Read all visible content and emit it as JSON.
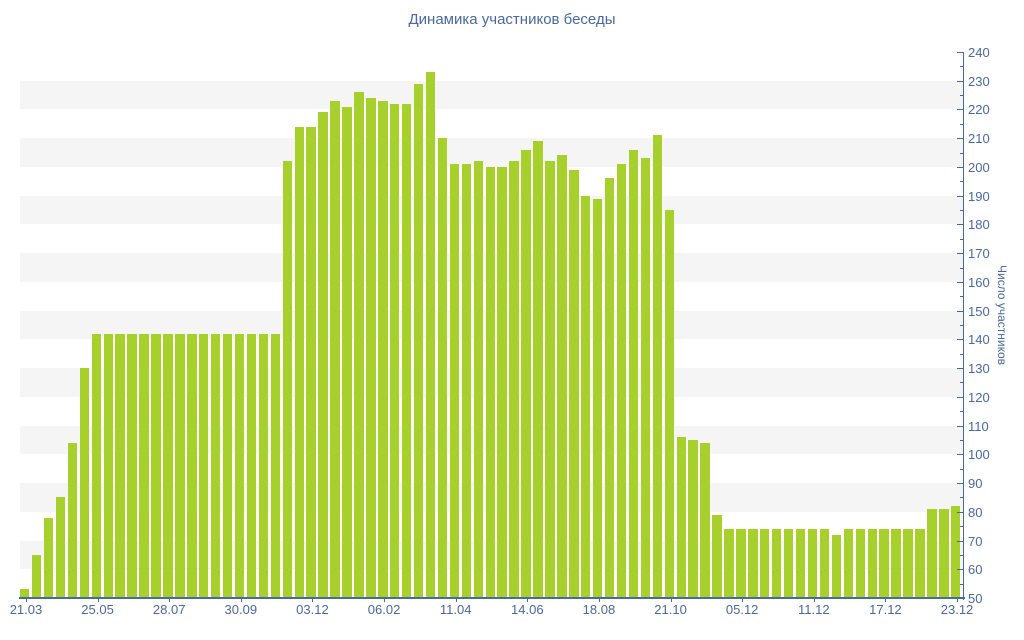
{
  "chart_data": {
    "type": "bar",
    "title": "Динамика участников беседы",
    "xlabel": "",
    "ylabel": "Число участников",
    "legend": "none",
    "grid": "alternating horizontal bands every 10 units",
    "y_axis": {
      "min": 50,
      "max": 240,
      "major_step": 10,
      "minor_step": 5,
      "side": "right"
    },
    "y_tick_labels": [
      "50",
      "60",
      "70",
      "80",
      "90",
      "100",
      "110",
      "120",
      "130",
      "140",
      "150",
      "160",
      "170",
      "180",
      "190",
      "200",
      "210",
      "220",
      "230",
      "240"
    ],
    "x_tick_labels": [
      {
        "index": 0,
        "label": "21.03"
      },
      {
        "index": 6,
        "label": "25.05"
      },
      {
        "index": 12,
        "label": "28.07"
      },
      {
        "index": 18,
        "label": "30.09"
      },
      {
        "index": 24,
        "label": "03.12"
      },
      {
        "index": 30,
        "label": "06.02"
      },
      {
        "index": 36,
        "label": "11.04"
      },
      {
        "index": 42,
        "label": "14.06"
      },
      {
        "index": 48,
        "label": "18.08"
      },
      {
        "index": 54,
        "label": "21.10"
      },
      {
        "index": 60,
        "label": "05.12"
      },
      {
        "index": 66,
        "label": "11.12"
      },
      {
        "index": 72,
        "label": "17.12"
      },
      {
        "index": 78,
        "label": "23.12"
      }
    ],
    "values": [
      53,
      65,
      78,
      85,
      104,
      130,
      142,
      142,
      142,
      142,
      142,
      142,
      142,
      142,
      142,
      142,
      142,
      142,
      142,
      142,
      142,
      142,
      202,
      214,
      214,
      219,
      223,
      221,
      226,
      224,
      223,
      222,
      222,
      229,
      233,
      210,
      201,
      201,
      202,
      200,
      200,
      202,
      206,
      209,
      202,
      204,
      199,
      190,
      189,
      196,
      201,
      206,
      203,
      211,
      185,
      106,
      105,
      104,
      79,
      74,
      74,
      74,
      74,
      74,
      74,
      74,
      74,
      74,
      72,
      74,
      74,
      74,
      74,
      74,
      74,
      74,
      81,
      81,
      82
    ],
    "colors": {
      "bar": "#a7d02c",
      "band": "#f5f5f6",
      "axis": "#4a68a1",
      "text": "#4a68a1",
      "background": "#ffffff"
    }
  }
}
